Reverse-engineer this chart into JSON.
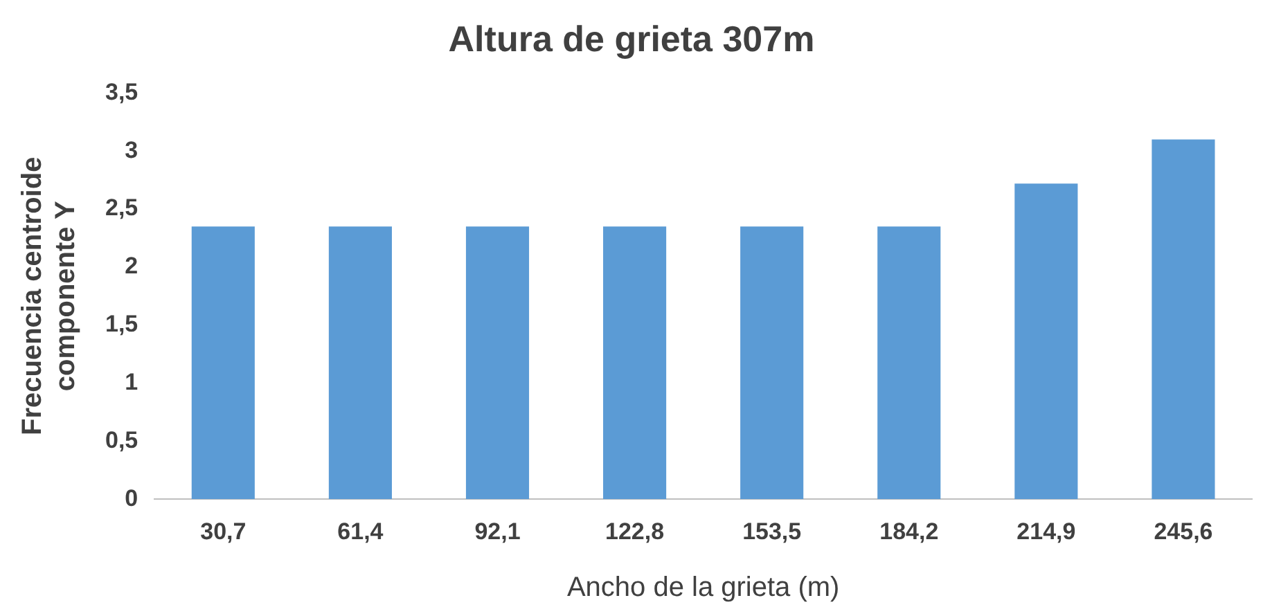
{
  "chart_data": {
    "type": "bar",
    "title": "Altura de grieta 307m",
    "xlabel": "Ancho de la grieta (m)",
    "ylabel": "Frecuencia centroide\ncomponente Y",
    "categories": [
      "30,7",
      "61,4",
      "92,1",
      "122,8",
      "153,5",
      "184,2",
      "214,9",
      "245,6"
    ],
    "values": [
      2.35,
      2.35,
      2.35,
      2.35,
      2.35,
      2.35,
      2.72,
      3.1
    ],
    "color": "#5b9bd5",
    "ylim": [
      0,
      3.5
    ],
    "yticks": [
      0,
      {
        "value": 0.5,
        "label": "0,5"
      },
      1,
      {
        "value": 1.5,
        "label": "1,5"
      },
      2,
      {
        "value": 2.5,
        "label": "2,5"
      },
      3,
      {
        "value": 3.5,
        "label": "3,5"
      }
    ],
    "grid": false,
    "legend": false
  }
}
